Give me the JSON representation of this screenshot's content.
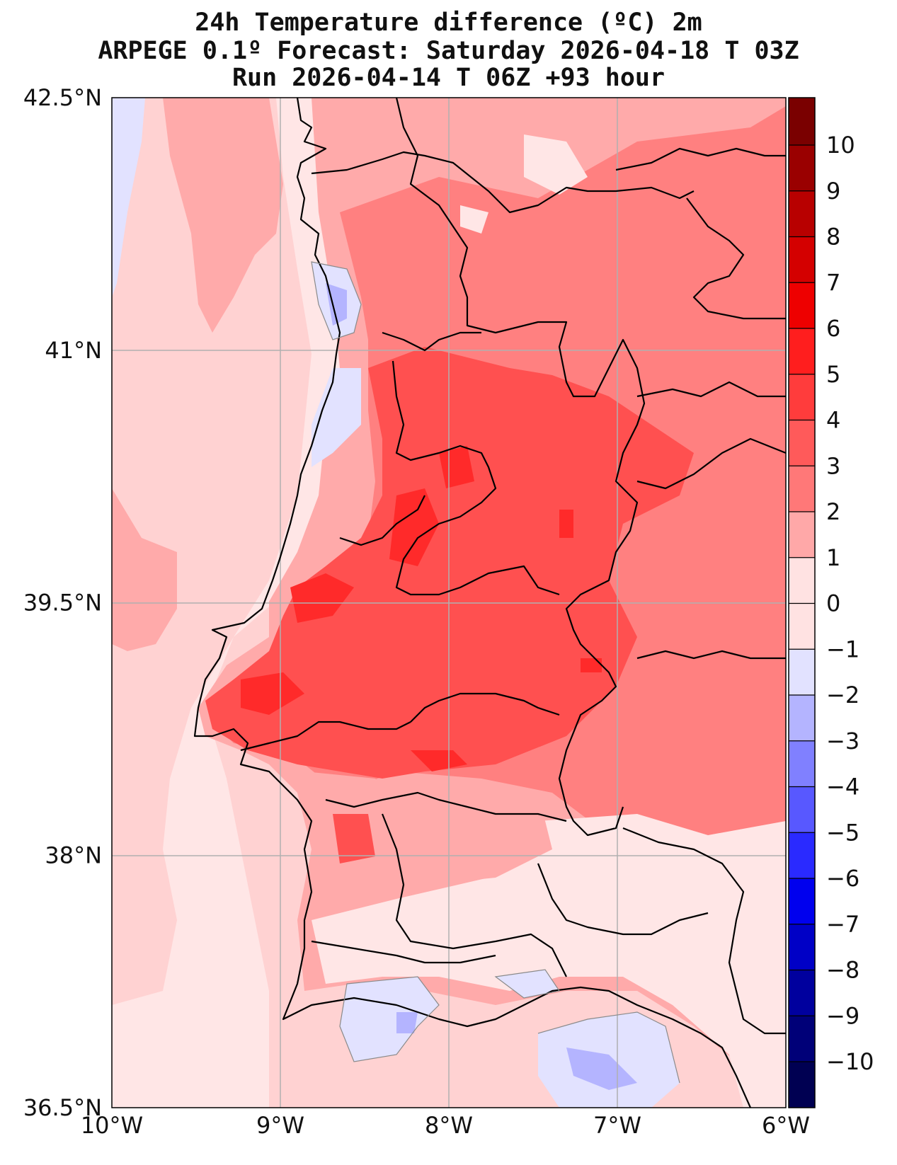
{
  "title": {
    "line1": "24h Temperature difference (ºC) 2m",
    "line2": "ARPEGE 0.1º Forecast: Saturday 2026-04-18 T 03Z",
    "line3": "Run 2026-04-14 T 06Z +93 hour"
  },
  "map": {
    "lat_ticks": [
      "42.5°N",
      "41°N",
      "39.5°N",
      "38°N",
      "36.5°N"
    ],
    "lon_ticks": [
      "10°W",
      "9°W",
      "8°W",
      "7°W",
      "6°W"
    ],
    "lat_values": [
      42.5,
      41,
      39.5,
      38,
      36.5
    ],
    "lon_values": [
      -10,
      -9,
      -8,
      -7,
      -6
    ],
    "extent": {
      "lon_min": -10,
      "lon_max": -6,
      "lat_min": 36.5,
      "lat_max": 42.5
    }
  },
  "colorbar": {
    "ticks": [
      "10",
      "9",
      "8",
      "7",
      "6",
      "5",
      "4",
      "3",
      "2",
      "1",
      "0",
      "−1",
      "−2",
      "−3",
      "−4",
      "−5",
      "−6",
      "−7",
      "−8",
      "−9",
      "−10"
    ],
    "levels_top_to_bottom": [
      "#7a0000",
      "#9a0000",
      "#b80000",
      "#d40000",
      "#ee0000",
      "#ff1e1e",
      "#ff3c3c",
      "#ff5a5a",
      "#ff7878",
      "#ffa8a8",
      "#ffe2e2",
      "#e2e2ff",
      "#b4b4ff",
      "#8080ff",
      "#5858ff",
      "#2a2aff",
      "#0000ee",
      "#0000c6",
      "#00009e",
      "#000078",
      "#000052"
    ]
  },
  "colors": {
    "ocean": "#ffd2d2",
    "coast_band": "#ffe6e6",
    "land_low": "#ffaaaa",
    "land_mid": "#ff8080",
    "land_high": "#ff5050",
    "land_peak": "#ff2a2a",
    "neg_light": "#e2e2ff",
    "neg_mid": "#b4b4ff",
    "border": "#000000",
    "grid": "#b0b0b0"
  }
}
